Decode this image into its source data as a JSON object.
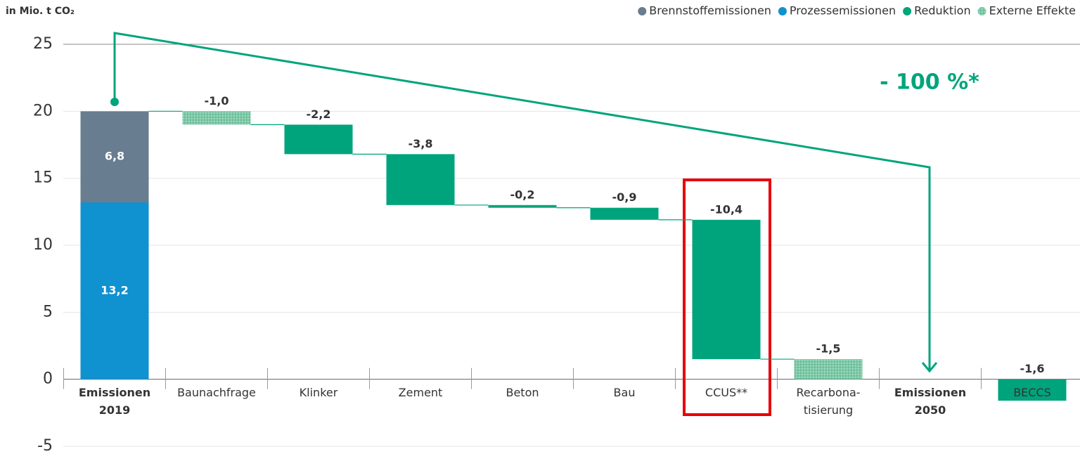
{
  "chart_data": {
    "type": "waterfall",
    "y_label": "in Mio. t CO₂",
    "annotation": "- 100 %*",
    "categories": [
      "Emissionen\n2019",
      "Baunachfrage",
      "Klinker",
      "Zement",
      "Beton",
      "Bau",
      "CCUS**",
      "Recarbona-\ntisierung",
      "Emissionen\n2050",
      "BECCS"
    ],
    "bold_categories": [
      0,
      8
    ],
    "series": [
      {
        "name": "Brennstoffemissionen",
        "color": "#687d8f",
        "values": [
          6.8,
          null,
          null,
          null,
          null,
          null,
          null,
          null,
          null,
          null
        ],
        "value_labels": [
          "6,8",
          null,
          null,
          null,
          null,
          null,
          null,
          null,
          null,
          null
        ]
      },
      {
        "name": "Prozessemissionen",
        "color": "#1091d0",
        "values": [
          13.2,
          null,
          null,
          null,
          null,
          null,
          null,
          null,
          null,
          null
        ],
        "value_labels": [
          "13,2",
          null,
          null,
          null,
          null,
          null,
          null,
          null,
          null,
          null
        ]
      },
      {
        "name": "Reduktion",
        "color": "#00a47c",
        "values": [
          null,
          null,
          -2.2,
          -3.8,
          -0.2,
          -0.9,
          -10.4,
          null,
          null,
          -1.6
        ],
        "value_labels": [
          null,
          null,
          "-2,2",
          "-3,8",
          "-0,2",
          "-0,9",
          "-10,4",
          null,
          null,
          "-1,6"
        ]
      },
      {
        "name": "Externe Effekte",
        "color": "#7cc8a6",
        "pattern": true,
        "values": [
          null,
          -1.0,
          null,
          null,
          null,
          null,
          null,
          -1.5,
          null,
          null
        ],
        "value_labels": [
          null,
          "-1,0",
          null,
          null,
          null,
          null,
          null,
          "-1,5",
          null,
          null
        ]
      }
    ],
    "ylim": [
      -5,
      25
    ],
    "yticks": [
      -5,
      0,
      5,
      10,
      15,
      20,
      25
    ],
    "grid": true
  }
}
